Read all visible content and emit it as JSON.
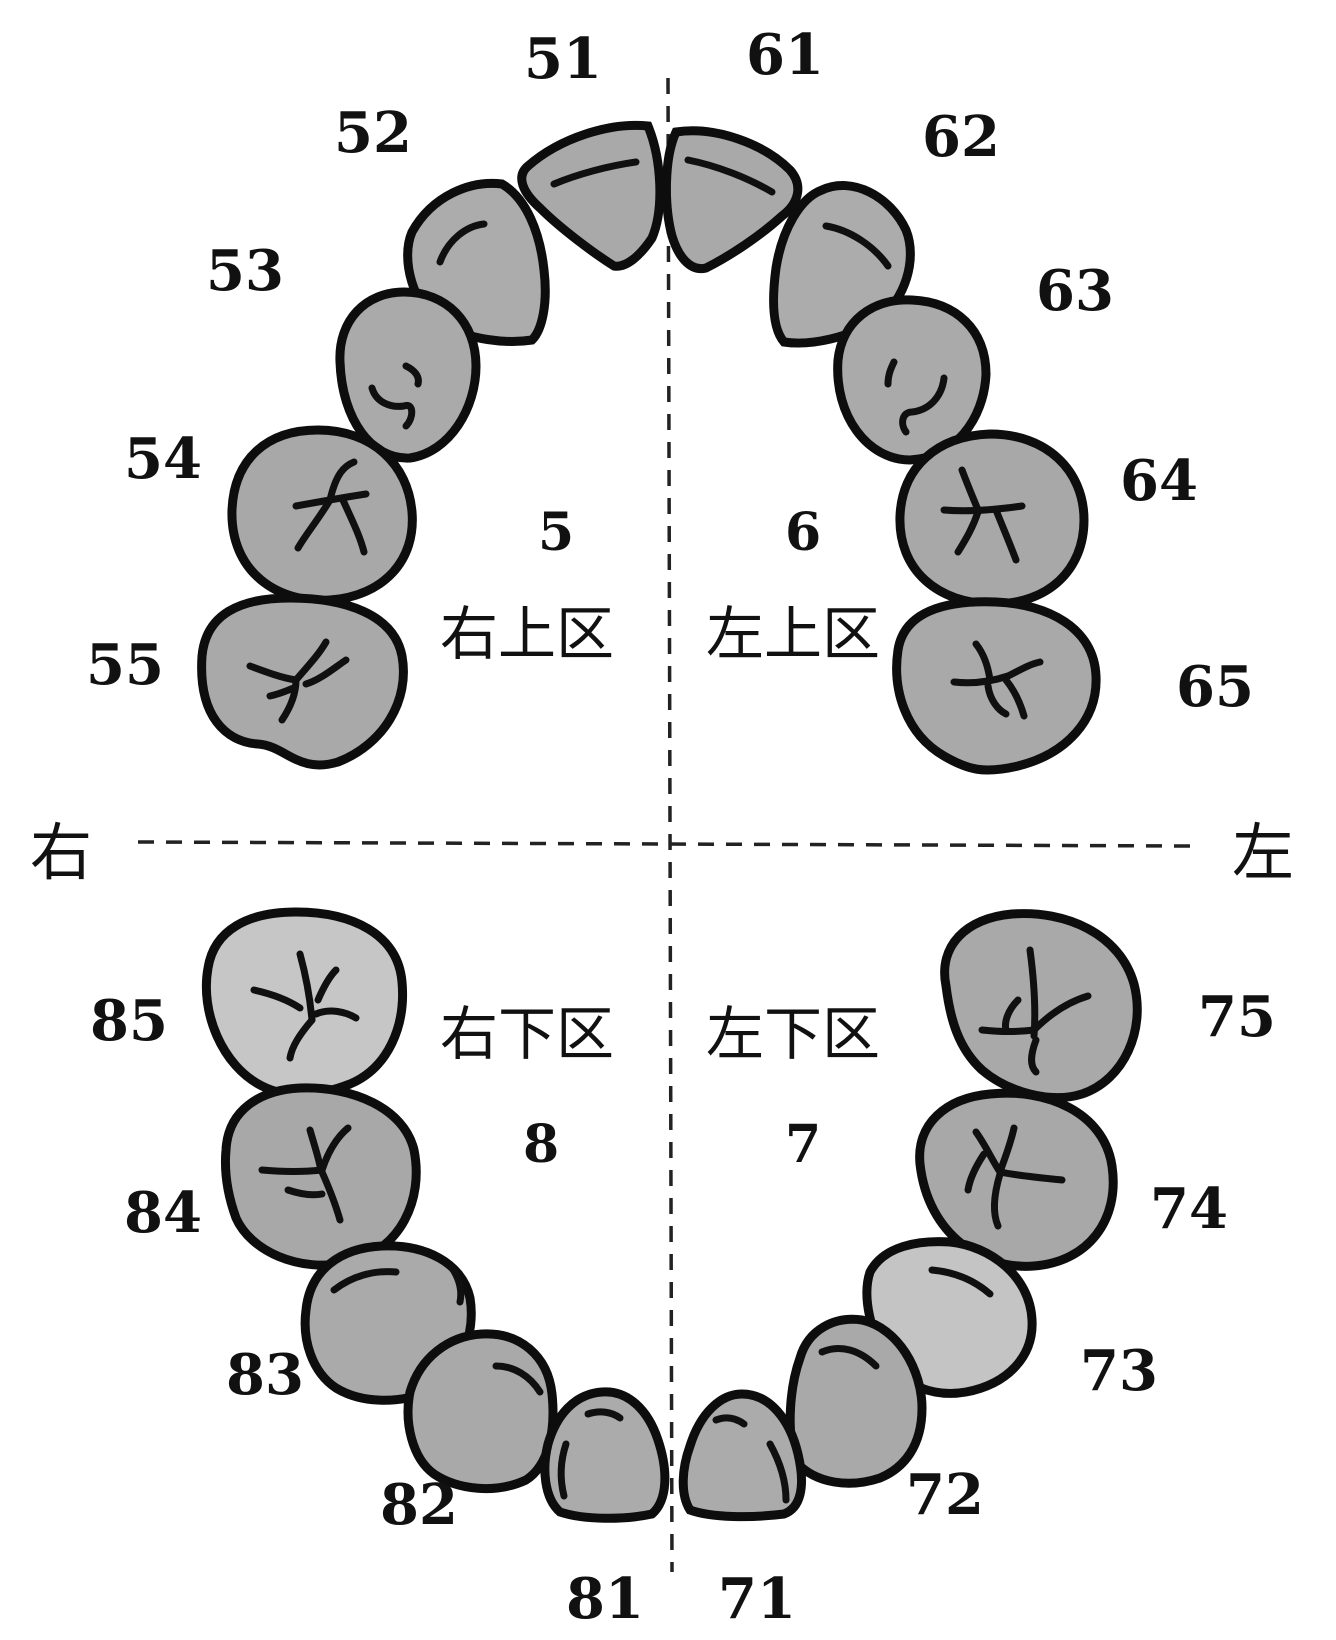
{
  "colors": {
    "tooth_fill": "#a9a9a9",
    "tooth_fill_light": "#c6c6c6",
    "outline": "#0d0d0d",
    "text": "#111111"
  },
  "sides": {
    "right": "右",
    "left": "左"
  },
  "quadrants": [
    {
      "id": "upper-right",
      "number": "5",
      "label": "右上区"
    },
    {
      "id": "upper-left",
      "number": "6",
      "label": "左上区"
    },
    {
      "id": "lower-left",
      "number": "7",
      "label": "左下区"
    },
    {
      "id": "lower-right",
      "number": "8",
      "label": "右下区"
    }
  ],
  "teeth": [
    {
      "code": "51",
      "kind": "incisor"
    },
    {
      "code": "52",
      "kind": "lateral-incisor"
    },
    {
      "code": "53",
      "kind": "canine"
    },
    {
      "code": "54",
      "kind": "first-molar"
    },
    {
      "code": "55",
      "kind": "second-molar"
    },
    {
      "code": "61",
      "kind": "incisor"
    },
    {
      "code": "62",
      "kind": "lateral-incisor"
    },
    {
      "code": "63",
      "kind": "canine"
    },
    {
      "code": "64",
      "kind": "first-molar"
    },
    {
      "code": "65",
      "kind": "second-molar"
    },
    {
      "code": "71",
      "kind": "incisor"
    },
    {
      "code": "72",
      "kind": "lateral-incisor"
    },
    {
      "code": "73",
      "kind": "canine"
    },
    {
      "code": "74",
      "kind": "first-molar"
    },
    {
      "code": "75",
      "kind": "second-molar"
    },
    {
      "code": "81",
      "kind": "incisor"
    },
    {
      "code": "82",
      "kind": "lateral-incisor"
    },
    {
      "code": "83",
      "kind": "canine"
    },
    {
      "code": "84",
      "kind": "first-molar"
    },
    {
      "code": "85",
      "kind": "second-molar"
    }
  ]
}
